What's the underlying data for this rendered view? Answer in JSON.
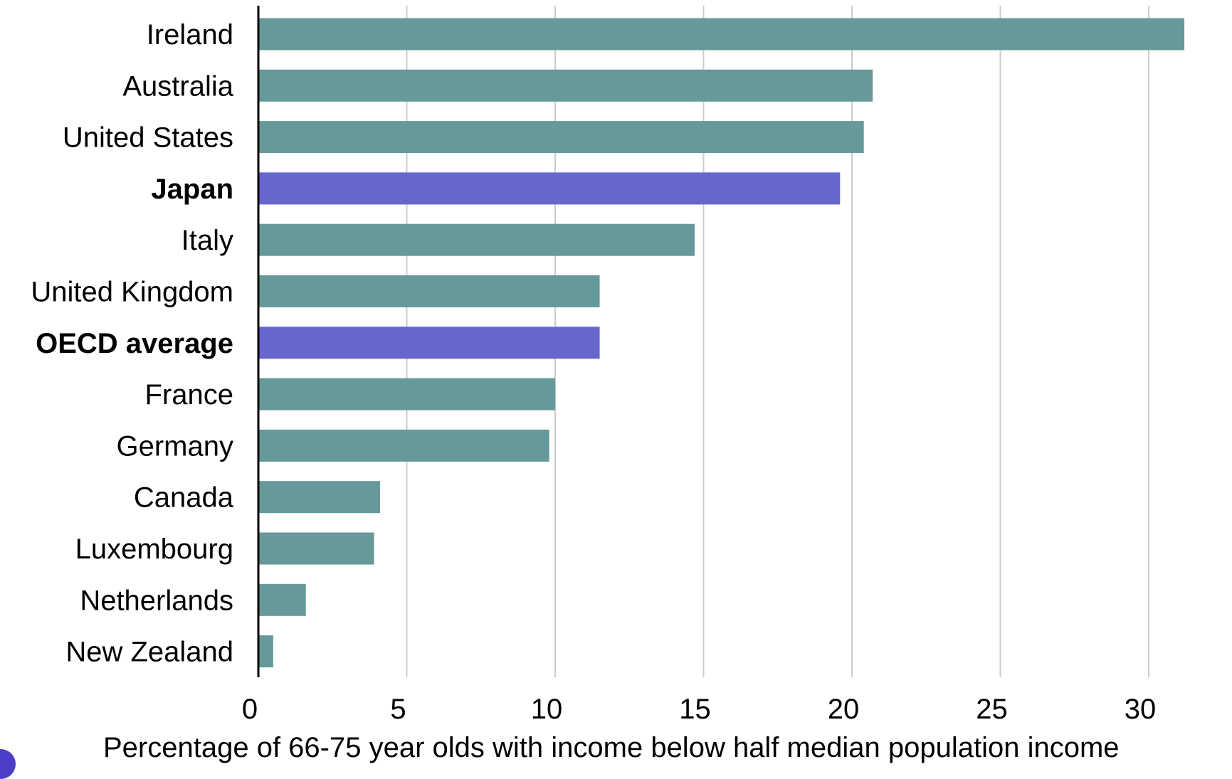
{
  "chart_data": {
    "type": "bar",
    "orientation": "horizontal",
    "categories": [
      "Ireland",
      "Australia",
      "United States",
      "Japan",
      "Italy",
      "United Kingdom",
      "OECD average",
      "France",
      "Germany",
      "Canada",
      "Luxembourg",
      "Netherlands",
      "New Zealand"
    ],
    "values": [
      31.2,
      20.7,
      20.4,
      19.6,
      14.7,
      11.5,
      11.5,
      10.0,
      9.8,
      4.1,
      3.9,
      1.6,
      0.5
    ],
    "highlighted": [
      "Japan",
      "OECD average"
    ],
    "xlabel": "Percentage of 66-75 year olds with income below half median population income",
    "ylabel": "",
    "xlim": [
      0,
      30
    ],
    "xticks": [
      0,
      5,
      10,
      15,
      20,
      25,
      30
    ],
    "grid": "vertical",
    "legend": "none"
  },
  "colors": {
    "bar": "#669999",
    "highlight": "#6666cc",
    "grid": "#cccccc",
    "axis": "#000000",
    "text": "#000000",
    "corner_mark": "#4a3fc6"
  }
}
